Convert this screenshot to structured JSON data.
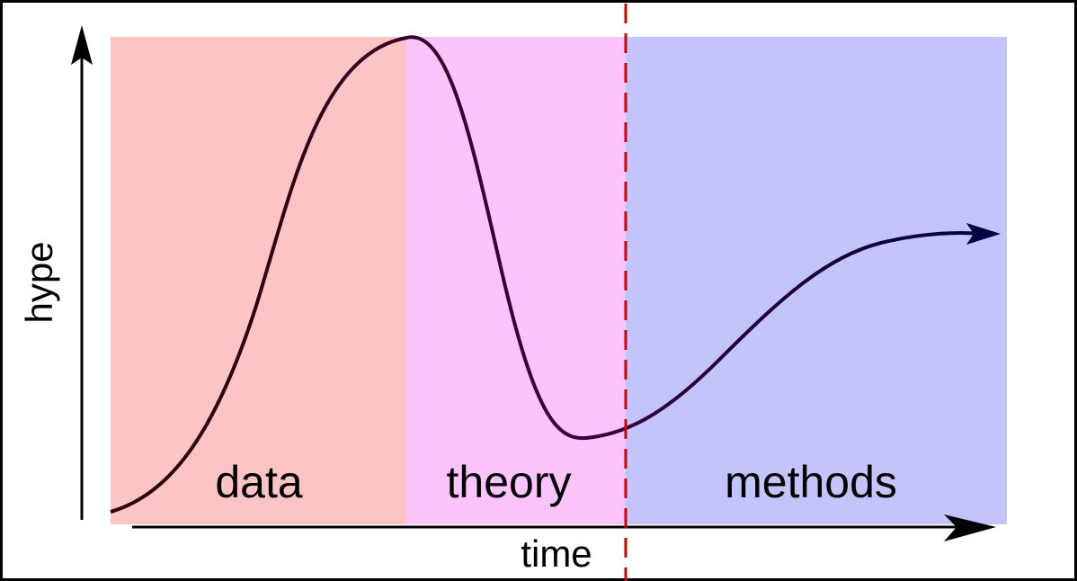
{
  "axes": {
    "x_label": "time",
    "y_label": "hype"
  },
  "regions": [
    {
      "label": "data",
      "color": "#fcc4c4"
    },
    {
      "label": "theory",
      "color": "#fcc4fc"
    },
    {
      "label": "methods",
      "color": "#c4c4fc"
    }
  ],
  "curve": {
    "color_start": "#2a0000",
    "color_mid": "#3a003a",
    "color_end": "#000040"
  },
  "marker_line": {
    "color": "#d40000",
    "style": "dashed"
  },
  "border_color": "#000000"
}
